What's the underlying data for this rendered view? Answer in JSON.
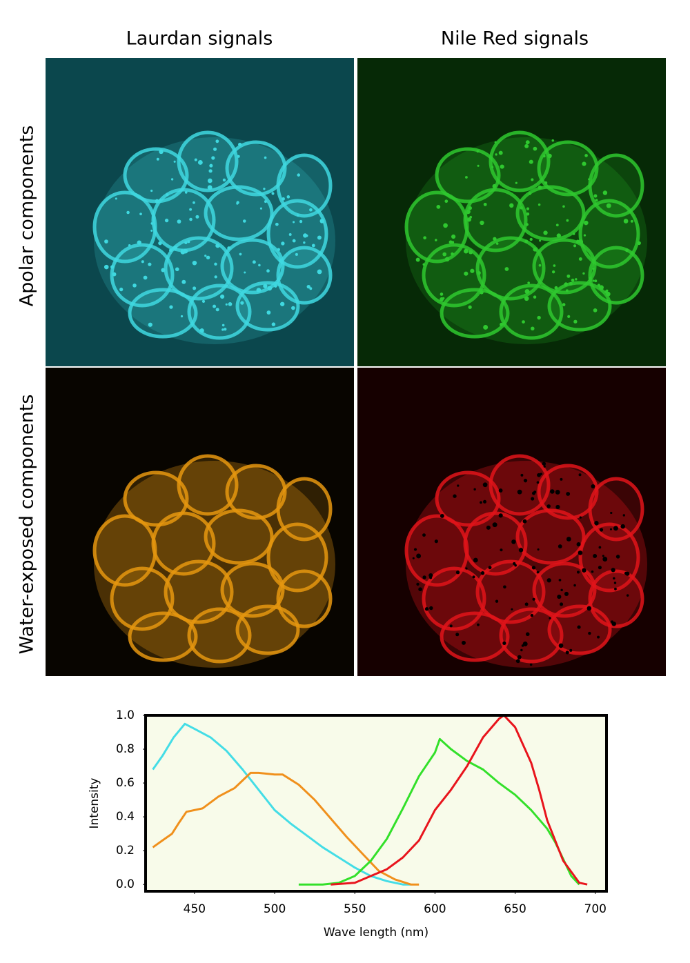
{
  "columns": [
    "Laurdan signals",
    "Nile Red signals"
  ],
  "rows": [
    "Apolar components",
    "Water-exposed components"
  ],
  "chart_data": {
    "type": "line",
    "xlabel": "Wave length (nm)",
    "ylabel": "Intensity",
    "xlim": [
      419.5,
      707
    ],
    "ylim": [
      -0.04,
      1.0
    ],
    "xticks": [
      450,
      500,
      550,
      600,
      650,
      700
    ],
    "yticks": [
      {
        "value": 0,
        "label": "0.0"
      },
      {
        "value": 0.2,
        "label": "0.2"
      },
      {
        "value": 0.4,
        "label": "0.4"
      },
      {
        "value": 0.6,
        "label": "0.6"
      },
      {
        "value": 0.8,
        "label": "0.8"
      },
      {
        "value": 1.0,
        "label": "1.0"
      }
    ],
    "background": "#f8fbea",
    "series": [
      {
        "color": "#44dde6",
        "x": [
          424,
          430,
          437,
          444,
          450,
          460,
          470,
          480,
          490,
          500,
          510,
          520,
          530,
          540,
          550,
          560,
          570,
          580,
          585
        ],
        "values": [
          0.68,
          0.76,
          0.87,
          0.95,
          0.92,
          0.87,
          0.79,
          0.68,
          0.56,
          0.44,
          0.36,
          0.29,
          0.22,
          0.16,
          0.1,
          0.05,
          0.02,
          0.0,
          0.0
        ]
      },
      {
        "color": "#f0901c",
        "x": [
          424,
          430,
          436,
          440,
          445,
          455,
          465,
          475,
          485,
          490,
          500,
          505,
          515,
          525,
          535,
          545,
          555,
          565,
          575,
          585,
          590
        ],
        "values": [
          0.22,
          0.26,
          0.3,
          0.36,
          0.43,
          0.45,
          0.52,
          0.57,
          0.66,
          0.66,
          0.65,
          0.65,
          0.59,
          0.5,
          0.39,
          0.28,
          0.18,
          0.08,
          0.03,
          0.0,
          0.0
        ]
      },
      {
        "color": "#33e02a",
        "x": [
          515,
          530,
          540,
          550,
          560,
          570,
          580,
          590,
          600,
          603,
          610,
          620,
          630,
          640,
          650,
          660,
          670,
          675,
          680,
          685,
          690
        ],
        "values": [
          0.0,
          0.0,
          0.01,
          0.05,
          0.14,
          0.27,
          0.45,
          0.64,
          0.78,
          0.86,
          0.8,
          0.73,
          0.68,
          0.6,
          0.53,
          0.44,
          0.33,
          0.25,
          0.15,
          0.05,
          0.0
        ]
      },
      {
        "color": "#e8141c",
        "x": [
          535,
          550,
          560,
          570,
          580,
          590,
          600,
          610,
          620,
          630,
          640,
          643,
          650,
          660,
          665,
          670,
          680,
          690,
          695
        ],
        "values": [
          0.0,
          0.01,
          0.05,
          0.09,
          0.16,
          0.26,
          0.44,
          0.56,
          0.7,
          0.87,
          0.98,
          1.0,
          0.93,
          0.72,
          0.56,
          0.38,
          0.14,
          0.01,
          0.0
        ]
      }
    ]
  }
}
